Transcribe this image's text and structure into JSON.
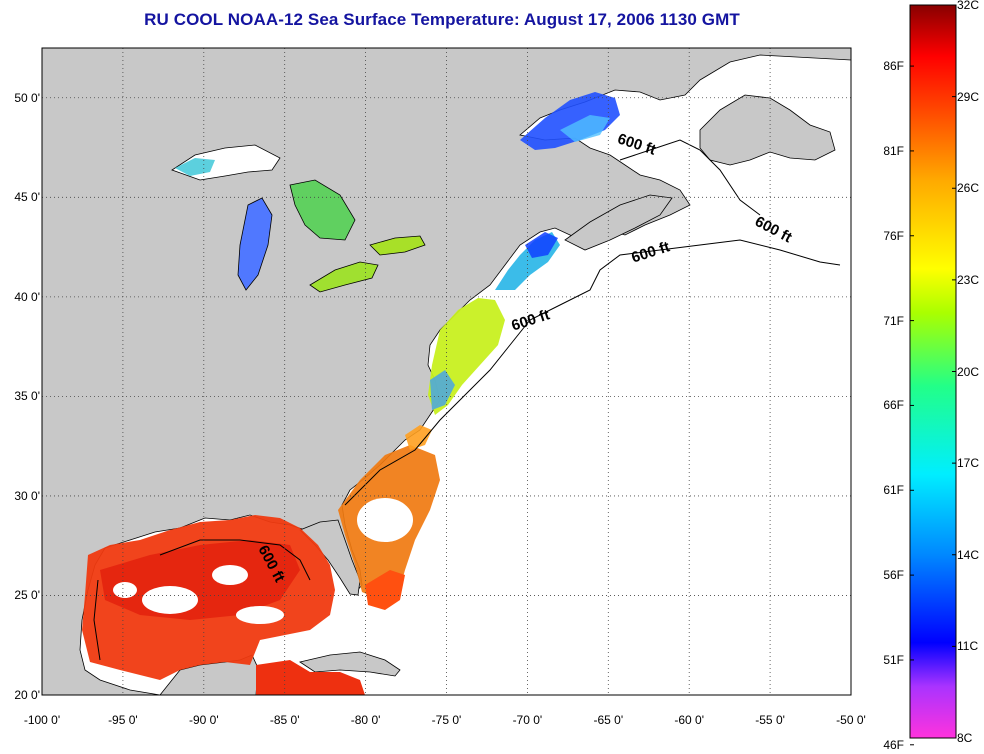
{
  "title": "RU COOL  NOAA-12  Sea Surface Temperature:  August 17, 2006 1130 GMT",
  "map": {
    "lon_range": [
      -100,
      -50
    ],
    "lat_range": [
      20,
      52.5
    ],
    "lat_labels": [
      "20 0'",
      "25 0'",
      "30 0'",
      "35 0'",
      "40 0'",
      "45 0'",
      "50 0'"
    ],
    "lon_labels": [
      "-100 0'",
      "-95 0'",
      "-90 0'",
      "-85 0'",
      "-80 0'",
      "-75 0'",
      "-70 0'",
      "-65 0'",
      "-60 0'",
      "-55 0'",
      "-50 0'"
    ],
    "grid": "dotted",
    "land_color": "#c8c8c8",
    "contour_labels": [
      "600 ft",
      "600 ft",
      "600 ft",
      "600 ft",
      "600 ft"
    ]
  },
  "colorbar": {
    "f_labels": [
      "86F",
      "81F",
      "76F",
      "71F",
      "66F",
      "61F",
      "56F",
      "51F",
      "46F"
    ],
    "c_labels": [
      "32C",
      "29C",
      "26C",
      "23C",
      "20C",
      "17C",
      "14C",
      "11C",
      "8C"
    ],
    "range_c": [
      8,
      32
    ],
    "colors": [
      "#ff33dd",
      "#9933ff",
      "#0000ff",
      "#0088ff",
      "#00eeff",
      "#00ff88",
      "#aaff00",
      "#ffff00",
      "#ffaa00",
      "#ff5500",
      "#ff0000",
      "#880000"
    ]
  }
}
